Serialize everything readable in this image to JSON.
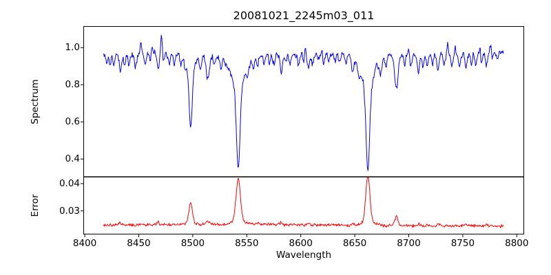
{
  "figure": {
    "background": "#ffffff"
  },
  "chart_data": {
    "type": "line",
    "title": "20081021_2245m03_011",
    "xlabel": "Wavelength",
    "x_ticks": [
      8400,
      8450,
      8500,
      8550,
      8600,
      8650,
      8700,
      8750,
      8800
    ],
    "x_tick_labels": [
      "8400",
      "8450",
      "8500",
      "8550",
      "8600",
      "8650",
      "8700",
      "8750",
      "8800"
    ],
    "xlim": [
      8399.0,
      8806.5
    ],
    "x_start": 8417.5,
    "x_end": 8788.0,
    "sample_step": 0.55,
    "noise_seed": 20081021,
    "grid": false,
    "legend": "none",
    "subplots": [
      {
        "name": "spectrum",
        "ylabel": "Spectrum",
        "line_color": "#0000ff",
        "ylim": [
          0.305,
          1.114
        ],
        "y_ticks": [
          1.0,
          0.8,
          0.6,
          0.4
        ],
        "y_tick_labels": [
          "1.0",
          "0.8",
          "0.6",
          "0.4"
        ],
        "continuum": [
          [
            8417.5,
            0.965
          ],
          [
            8440,
            0.958
          ],
          [
            8465,
            0.972
          ],
          [
            8490,
            0.968
          ],
          [
            8520,
            0.955
          ],
          [
            8555,
            0.96
          ],
          [
            8600,
            0.965
          ],
          [
            8640,
            0.968
          ],
          [
            8700,
            0.958
          ],
          [
            8750,
            0.963
          ],
          [
            8788,
            0.975
          ]
        ],
        "absorption_lines": [
          {
            "center": 8498.0,
            "depth": 0.32,
            "width": 1.4,
            "wing_depth": 0.08,
            "wing_width": 4.5,
            "label": "Ca II 8498, min ~0.56"
          },
          {
            "center": 8542.1,
            "depth": 0.44,
            "width": 1.7,
            "wing_depth": 0.16,
            "wing_width": 7.0,
            "label": "Ca II 8542, min ~0.36"
          },
          {
            "center": 8662.1,
            "depth": 0.46,
            "width": 1.7,
            "wing_depth": 0.16,
            "wing_width": 7.0,
            "label": "Ca II 8662, min ~0.34"
          },
          {
            "center": 8514.0,
            "depth": 0.13,
            "width": 1.4,
            "label": "Fe line, min ~0.83"
          },
          {
            "center": 8688.5,
            "depth": 0.185,
            "width": 1.6,
            "label": "Fe I 8688, min ~0.78"
          },
          {
            "center": 8420.5,
            "depth": 0.05,
            "width": 0.8
          },
          {
            "center": 8423.5,
            "depth": 0.07,
            "width": 0.9
          },
          {
            "center": 8427.0,
            "depth": 0.05,
            "width": 0.8
          },
          {
            "center": 8433.0,
            "depth": 0.09,
            "width": 1.0
          },
          {
            "center": 8437.0,
            "depth": 0.05,
            "width": 0.8
          },
          {
            "center": 8441.0,
            "depth": 0.06,
            "width": 0.9
          },
          {
            "center": 8447.0,
            "depth": 0.07,
            "width": 0.9
          },
          {
            "center": 8456.0,
            "depth": 0.06,
            "width": 0.9
          },
          {
            "center": 8461.0,
            "depth": 0.05,
            "width": 0.8
          },
          {
            "center": 8468.0,
            "depth": 0.095,
            "width": 1.0
          },
          {
            "center": 8473.0,
            "depth": 0.05,
            "width": 0.8
          },
          {
            "center": 8478.0,
            "depth": 0.06,
            "width": 0.9
          },
          {
            "center": 8483.0,
            "depth": 0.06,
            "width": 0.9
          },
          {
            "center": 8489.0,
            "depth": 0.05,
            "width": 0.8
          },
          {
            "center": 8493.0,
            "depth": 0.04,
            "width": 0.8
          },
          {
            "center": 8507.0,
            "depth": 0.055,
            "width": 0.9
          },
          {
            "center": 8520.0,
            "depth": 0.05,
            "width": 0.9
          },
          {
            "center": 8526.0,
            "depth": 0.06,
            "width": 0.9
          },
          {
            "center": 8551.0,
            "depth": 0.04,
            "width": 0.8
          },
          {
            "center": 8556.0,
            "depth": 0.05,
            "width": 0.9
          },
          {
            "center": 8560.0,
            "depth": 0.06,
            "width": 0.9
          },
          {
            "center": 8566.0,
            "depth": 0.05,
            "width": 0.8
          },
          {
            "center": 8571.0,
            "depth": 0.04,
            "width": 0.8
          },
          {
            "center": 8575.0,
            "depth": 0.05,
            "width": 0.9
          },
          {
            "center": 8582.0,
            "depth": 0.095,
            "width": 1.0
          },
          {
            "center": 8586.0,
            "depth": 0.05,
            "width": 0.8
          },
          {
            "center": 8590.0,
            "depth": 0.05,
            "width": 0.9
          },
          {
            "center": 8598.0,
            "depth": 0.06,
            "width": 0.9
          },
          {
            "center": 8603.0,
            "depth": 0.05,
            "width": 0.8
          },
          {
            "center": 8607.0,
            "depth": 0.08,
            "width": 1.0
          },
          {
            "center": 8611.0,
            "depth": 0.06,
            "width": 0.9
          },
          {
            "center": 8616.0,
            "depth": 0.04,
            "width": 0.8
          },
          {
            "center": 8621.0,
            "depth": 0.06,
            "width": 0.9
          },
          {
            "center": 8626.0,
            "depth": 0.05,
            "width": 0.8
          },
          {
            "center": 8632.0,
            "depth": 0.04,
            "width": 0.8
          },
          {
            "center": 8636.0,
            "depth": 0.05,
            "width": 0.9
          },
          {
            "center": 8642.0,
            "depth": 0.04,
            "width": 0.8
          },
          {
            "center": 8648.0,
            "depth": 0.085,
            "width": 1.0
          },
          {
            "center": 8654.0,
            "depth": 0.05,
            "width": 0.8
          },
          {
            "center": 8674.0,
            "depth": 0.075,
            "width": 0.9
          },
          {
            "center": 8679.0,
            "depth": 0.05,
            "width": 0.8
          },
          {
            "center": 8696.0,
            "depth": 0.05,
            "width": 0.9
          },
          {
            "center": 8702.0,
            "depth": 0.06,
            "width": 0.9
          },
          {
            "center": 8709.0,
            "depth": 0.09,
            "width": 1.0
          },
          {
            "center": 8713.0,
            "depth": 0.06,
            "width": 0.9
          },
          {
            "center": 8717.0,
            "depth": 0.06,
            "width": 0.9
          },
          {
            "center": 8722.0,
            "depth": 0.05,
            "width": 0.8
          },
          {
            "center": 8727.0,
            "depth": 0.09,
            "width": 1.0
          },
          {
            "center": 8733.0,
            "depth": 0.05,
            "width": 0.8
          },
          {
            "center": 8740.0,
            "depth": 0.06,
            "width": 0.9
          },
          {
            "center": 8747.0,
            "depth": 0.065,
            "width": 0.9
          },
          {
            "center": 8753.0,
            "depth": 0.075,
            "width": 0.9
          },
          {
            "center": 8758.0,
            "depth": 0.05,
            "width": 0.8
          },
          {
            "center": 8762.0,
            "depth": 0.065,
            "width": 0.9
          },
          {
            "center": 8767.0,
            "depth": 0.05,
            "width": 0.8
          },
          {
            "center": 8772.0,
            "depth": 0.07,
            "width": 0.9
          },
          {
            "center": 8777.0,
            "depth": 0.05,
            "width": 0.8
          },
          {
            "center": 8782.0,
            "depth": 0.04,
            "width": 0.8
          }
        ],
        "emission_spikes": [
          {
            "center": 8452.0,
            "height": 0.08,
            "width": 0.7
          },
          {
            "center": 8462.0,
            "height": 0.05,
            "width": 0.6
          },
          {
            "center": 8471.0,
            "height": 0.1,
            "width": 0.7
          },
          {
            "center": 8604.0,
            "height": 0.05,
            "width": 0.6
          },
          {
            "center": 8620.0,
            "height": 0.04,
            "width": 0.6
          },
          {
            "center": 8670.0,
            "height": 0.04,
            "width": 0.6
          },
          {
            "center": 8700.0,
            "height": 0.04,
            "width": 0.6
          },
          {
            "center": 8736.0,
            "height": 0.06,
            "width": 0.7
          },
          {
            "center": 8743.0,
            "height": 0.05,
            "width": 0.6
          },
          {
            "center": 8766.0,
            "height": 0.05,
            "width": 0.6
          },
          {
            "center": 8776.0,
            "height": 0.06,
            "width": 0.7
          }
        ],
        "noise_amplitude": 0.011
      },
      {
        "name": "error",
        "ylabel": "Error",
        "line_color": "#ff0000",
        "ylim": [
          0.0215,
          0.0424
        ],
        "y_ticks": [
          0.04,
          0.03
        ],
        "y_tick_labels": [
          "0.04",
          "0.03"
        ],
        "baseline": [
          [
            8417.5,
            0.0248
          ],
          [
            8500,
            0.025
          ],
          [
            8560,
            0.0251
          ],
          [
            8620,
            0.0248
          ],
          [
            8700,
            0.0246
          ],
          [
            8788,
            0.0244
          ]
        ],
        "peaks": [
          {
            "center": 8498.0,
            "height": 0.007,
            "width": 1.6,
            "wing_height": 0.0008,
            "wing_width": 4.0,
            "label": "peak ~0.032"
          },
          {
            "center": 8542.1,
            "height": 0.015,
            "width": 1.9,
            "wing_height": 0.0018,
            "wing_width": 5.0,
            "label": "peak ~0.040"
          },
          {
            "center": 8662.1,
            "height": 0.0168,
            "width": 1.8,
            "wing_height": 0.0018,
            "wing_width": 5.0,
            "label": "peak ~0.042"
          },
          {
            "center": 8514.0,
            "height": 0.0014,
            "width": 1.4
          },
          {
            "center": 8688.5,
            "height": 0.0032,
            "width": 1.5,
            "label": "peak ~0.028"
          },
          {
            "center": 8433.0,
            "height": 0.0008,
            "width": 1.0
          },
          {
            "center": 8468.0,
            "height": 0.0009,
            "width": 1.0
          },
          {
            "center": 8560.0,
            "height": 0.0005,
            "width": 1.0
          },
          {
            "center": 8582.0,
            "height": 0.0008,
            "width": 1.0
          },
          {
            "center": 8607.0,
            "height": 0.0006,
            "width": 1.0
          },
          {
            "center": 8648.0,
            "height": 0.0007,
            "width": 1.0
          },
          {
            "center": 8709.0,
            "height": 0.0007,
            "width": 1.0
          },
          {
            "center": 8727.0,
            "height": 0.0008,
            "width": 1.0
          },
          {
            "center": 8753.0,
            "height": 0.0006,
            "width": 1.0
          },
          {
            "center": 8772.0,
            "height": 0.0006,
            "width": 1.0
          }
        ],
        "noise_amplitude": 0.00035
      }
    ]
  }
}
